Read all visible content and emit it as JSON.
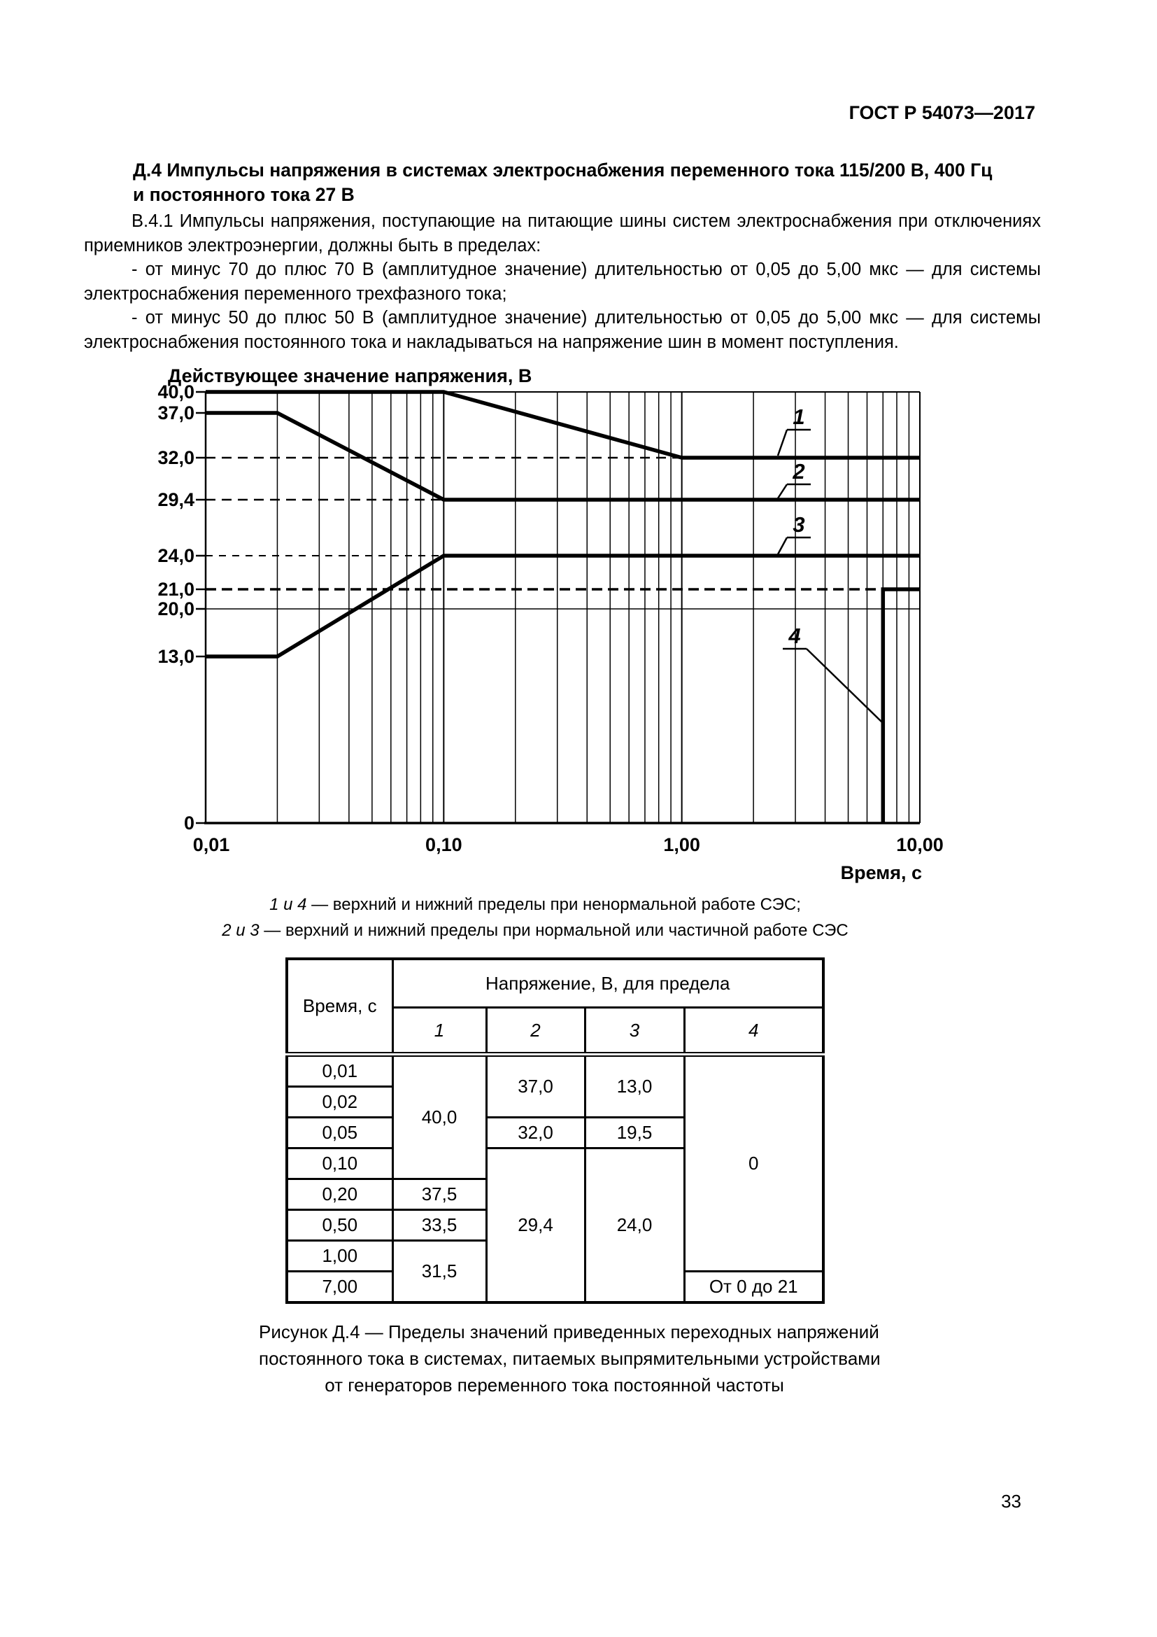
{
  "page": {
    "header": "ГОСТ Р 54073—2017",
    "number": "33"
  },
  "section": {
    "heading_lines": [
      "Д.4  Импульсы напряжения в системах электроснабжения переменного тока 115/200 В, 400 Гц",
      "и постоянного тока 27 В"
    ]
  },
  "paragraphs": [
    "В.4.1  Импульсы напряжения, поступающие на питающие шины систем электроснабжения при отключениях приемников электроэнергии, должны быть в пределах:",
    "- от минус 70 до плюс 70 В (амплитудное значение) длительностью от 0,05 до 5,00 мкс — для системы электроснабжения переменного трехфазного тока;",
    "- от минус 50 до плюс 50 В (амплитудное значение) длительностью от 0,05 до 5,00 мкс — для системы электроснабжения постоянного тока и накладываться на напряжение шин в момент поступления."
  ],
  "chart_data": {
    "type": "line",
    "title": "",
    "x_axis": {
      "label": "Время, с",
      "scale": "log",
      "range": [
        0.01,
        10
      ],
      "ticks": [
        {
          "label": "0,01",
          "value": 0.01
        },
        {
          "label": "0,10",
          "value": 0.1
        },
        {
          "label": "1,00",
          "value": 1
        },
        {
          "label": "10,00",
          "value": 10
        }
      ]
    },
    "y_axis": {
      "label": "Действующее значение напряжения, В",
      "range": [
        0,
        40
      ],
      "ticks": [
        {
          "label": "40,0",
          "value": 40
        },
        {
          "label": "37,0",
          "value": 37
        },
        {
          "label": "32,0",
          "value": 32
        },
        {
          "label": "29,4",
          "value": 29.4
        },
        {
          "label": "24,0",
          "value": 24
        },
        {
          "label": "21,0",
          "value": 21
        },
        {
          "label": "20,0",
          "value": 20
        },
        {
          "label": "13,0",
          "value": 13
        },
        {
          "label": "0",
          "value": 0
        }
      ]
    },
    "grid": {
      "dashed_levels": [
        32,
        29.4,
        24,
        21
      ],
      "solid_levels": [
        20
      ]
    },
    "series": [
      {
        "name": "1",
        "points": [
          [
            0.01,
            40
          ],
          [
            0.1,
            40
          ],
          [
            1,
            32
          ],
          [
            10,
            32
          ]
        ]
      },
      {
        "name": "2",
        "points": [
          [
            0.01,
            37
          ],
          [
            0.02,
            37
          ],
          [
            0.1,
            29.4
          ],
          [
            10,
            29.4
          ]
        ]
      },
      {
        "name": "3",
        "points": [
          [
            0.01,
            13
          ],
          [
            0.02,
            13
          ],
          [
            0.1,
            24
          ],
          [
            10,
            24
          ]
        ]
      },
      {
        "name": "4",
        "points": [
          [
            7,
            0
          ],
          [
            7,
            21
          ],
          [
            10,
            21
          ]
        ]
      }
    ],
    "legend": [
      {
        "num": "1 и 4",
        "text": " — верхний и нижний пределы при ненормальной работе СЭС;"
      },
      {
        "num": "2 и 3",
        "text": " — верхний и нижний пределы при нормальной или частичной работе СЭС"
      }
    ]
  },
  "table": {
    "time_header": "Время, с",
    "voltage_header": "Напряжение, В, для предела",
    "col_headers": [
      "1",
      "2",
      "3",
      "4"
    ],
    "time_values": [
      "0,01",
      "0,02",
      "0,05",
      "0,10",
      "0,20",
      "0,50",
      "1,00",
      "7,00"
    ],
    "v1": [
      "40,0",
      "37,5",
      "33,5",
      "31,5"
    ],
    "v2": [
      "37,0",
      "32,0",
      "29,4"
    ],
    "v3": [
      "13,0",
      "19,5",
      "24,0"
    ],
    "v4": [
      "0",
      "От 0 до 21"
    ]
  },
  "caption_lines": [
    "Рисунок Д.4 — Пределы значений приведенных переходных напряжений",
    "постоянного тока в системах, питаемых выпрямительными устройствами",
    "от генераторов переменного тока постоянной частоты"
  ]
}
